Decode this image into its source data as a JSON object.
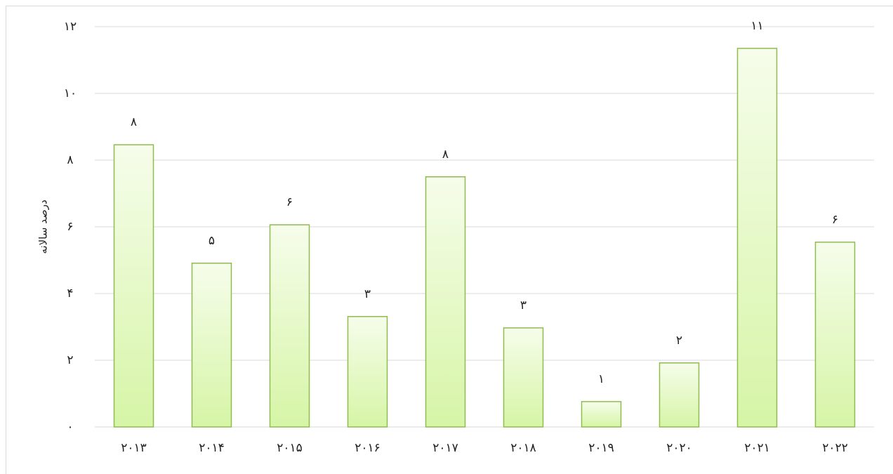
{
  "chart_data": {
    "type": "bar",
    "y_label": "درصد سالانه",
    "categories": [
      "۲۰۱۳",
      "۲۰۱۴",
      "۲۰۱۵",
      "۲۰۱۶",
      "۲۰۱۷",
      "۲۰۱۸",
      "۲۰۱۹",
      "۲۰۲۰",
      "۲۰۲۱",
      "۲۰۲۲"
    ],
    "values": [
      8.46,
      4.91,
      6.06,
      3.31,
      7.5,
      2.97,
      0.76,
      1.92,
      11.35,
      5.54
    ],
    "value_labels": [
      "۸",
      "۵",
      "۶",
      "۳",
      "۸",
      "۳",
      "۱",
      "۲",
      "۱۱",
      "۶"
    ],
    "color": "#8fbc4f",
    "ylim": [
      0,
      12
    ],
    "yticks": [
      {
        "value": 0,
        "label": "۰"
      },
      {
        "value": 2,
        "label": "۲"
      },
      {
        "value": 4,
        "label": "۴"
      },
      {
        "value": 6,
        "label": "۶"
      },
      {
        "value": 8,
        "label": "۸"
      },
      {
        "value": 10,
        "label": "۱۰"
      },
      {
        "value": 12,
        "label": "۱۲"
      }
    ],
    "grid": true
  }
}
